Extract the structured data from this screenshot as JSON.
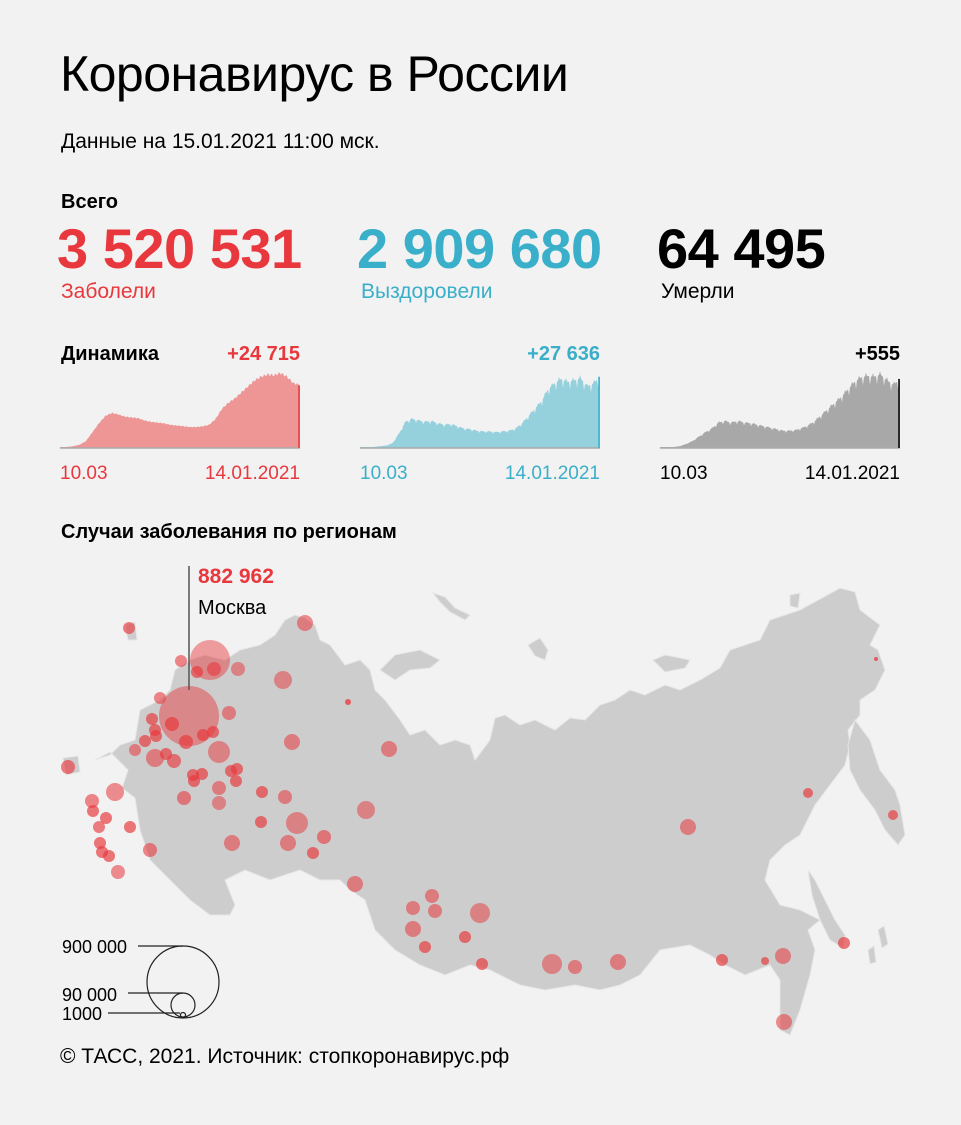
{
  "header": {
    "title": "Коронавирус в России",
    "subtitle": "Данные на 15.01.2021 11:00 мск."
  },
  "totals": {
    "section_label": "Всего",
    "items": [
      {
        "value": "3 520 531",
        "label": "Заболели",
        "color": "#e8383d"
      },
      {
        "value": "2 909 680",
        "label": "Выздоровели",
        "color": "#3aafc9"
      },
      {
        "value": "64 495",
        "label": "Умерли",
        "color": "#000000"
      }
    ]
  },
  "dynamics": {
    "section_label": "Динамика",
    "items": [
      {
        "delta": "+24 715",
        "start_date": "10.03",
        "end_date": "14.01.2021",
        "color": "#e8383d",
        "fill": "#ee9595"
      },
      {
        "delta": "+27 636",
        "start_date": "10.03",
        "end_date": "14.01.2021",
        "color": "#3aafc9",
        "fill": "#95d0dd"
      },
      {
        "delta": "+555",
        "start_date": "10.03",
        "end_date": "14.01.2021",
        "color": "#000000",
        "fill": "#a8a8a8"
      }
    ]
  },
  "map": {
    "section_label": "Случаи заболевания по регионам",
    "highlight": {
      "value": "882 962",
      "region": "Москва"
    },
    "legend": [
      {
        "label": "900 000"
      },
      {
        "label": "90 000"
      },
      {
        "label": "1000"
      }
    ]
  },
  "footer": {
    "credit": "© ТАСС, 2021. Источник: стопкоронавирус.рф"
  },
  "chart_data": [
    {
      "type": "area",
      "title": "Динамика — Заболели (новые случаи в день)",
      "x_range": [
        "10.03",
        "14.01.2021"
      ],
      "latest_value": 24715,
      "shape_normalized": [
        0,
        0,
        0.01,
        0.03,
        0.08,
        0.2,
        0.32,
        0.42,
        0.46,
        0.44,
        0.41,
        0.4,
        0.39,
        0.36,
        0.34,
        0.33,
        0.32,
        0.3,
        0.29,
        0.28,
        0.27,
        0.27,
        0.28,
        0.3,
        0.38,
        0.52,
        0.6,
        0.66,
        0.74,
        0.82,
        0.9,
        0.95,
        0.98,
        0.97,
        1.0,
        0.95,
        0.86,
        0.84
      ],
      "xlabel": "",
      "ylabel": ""
    },
    {
      "type": "area",
      "title": "Динамика — Выздоровели (в день)",
      "x_range": [
        "10.03",
        "14.01.2021"
      ],
      "latest_value": 27636,
      "shape_normalized": [
        0,
        0,
        0,
        0.01,
        0.02,
        0.05,
        0.18,
        0.34,
        0.38,
        0.36,
        0.34,
        0.35,
        0.32,
        0.3,
        0.31,
        0.28,
        0.25,
        0.24,
        0.22,
        0.21,
        0.21,
        0.2,
        0.21,
        0.22,
        0.25,
        0.32,
        0.42,
        0.52,
        0.62,
        0.78,
        0.86,
        0.92,
        0.88,
        0.9,
        0.93,
        0.82,
        0.86,
        0.95
      ],
      "xlabel": "",
      "ylabel": ""
    },
    {
      "type": "area",
      "title": "Динамика — Умерли (в день)",
      "x_range": [
        "10.03",
        "14.01.2021"
      ],
      "latest_value": 555,
      "shape_normalized": [
        0,
        0,
        0,
        0.01,
        0.04,
        0.08,
        0.14,
        0.2,
        0.25,
        0.33,
        0.35,
        0.33,
        0.35,
        0.33,
        0.32,
        0.3,
        0.28,
        0.26,
        0.24,
        0.22,
        0.22,
        0.23,
        0.26,
        0.3,
        0.36,
        0.44,
        0.52,
        0.6,
        0.68,
        0.78,
        0.88,
        0.94,
        0.96,
        0.95,
        0.98,
        0.9,
        0.84,
        0.92
      ],
      "xlabel": "",
      "ylabel": ""
    },
    {
      "type": "scatter",
      "title": "Случаи заболевания по регионам",
      "note": "Proportional bubble map; legend: 900 000, 90 000, 1000",
      "highlighted": {
        "region": "Москва",
        "cases": 882962
      }
    }
  ]
}
